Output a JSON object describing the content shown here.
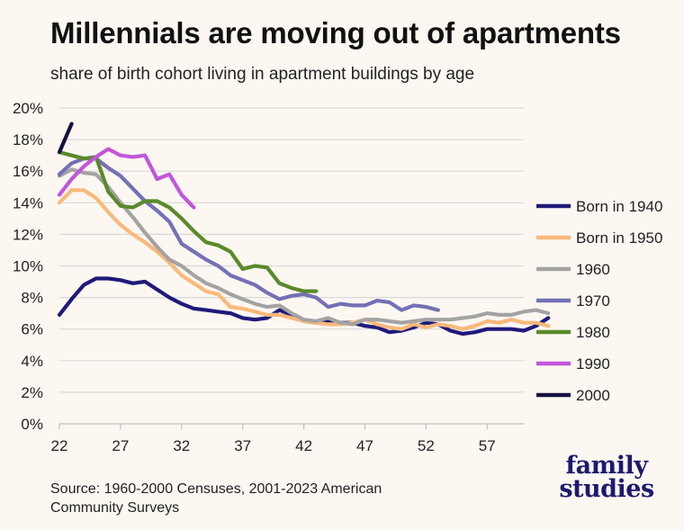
{
  "header": {
    "title": "Millennials are moving out of apartments",
    "subtitle": "share of birth cohort living in apartment buildings by age"
  },
  "footer": {
    "source_line1": "Source: 1960-2000 Censuses, 2001-2023 American",
    "source_line2": "Community Surveys",
    "logo_line1": "family",
    "logo_line2": "studies"
  },
  "colors": {
    "background": "#fdf7f2",
    "grid": "#d9d9d9",
    "axis": "#bfbfbf",
    "logo": "#1c1a6e"
  },
  "chart_data": {
    "type": "line",
    "title": "Millennials are moving out of apartments",
    "subtitle": "share of birth cohort living in apartment buildings by age",
    "xlabel": "",
    "ylabel": "",
    "xlim": [
      22,
      60
    ],
    "ylim": [
      0,
      20
    ],
    "x_ticks": [
      22,
      27,
      32,
      37,
      42,
      47,
      52,
      57
    ],
    "y_ticks": [
      0,
      2,
      4,
      6,
      8,
      10,
      12,
      14,
      16,
      18,
      20
    ],
    "y_tick_labels": [
      "0%",
      "2%",
      "4%",
      "6%",
      "8%",
      "10%",
      "12%",
      "14%",
      "16%",
      "18%",
      "20%"
    ],
    "grid": "horizontal",
    "legend_position": "right",
    "series": [
      {
        "name": "Born in 1940",
        "color": "#1f1a7a",
        "start_age": 22,
        "values": [
          6.9,
          7.9,
          8.8,
          9.2,
          9.2,
          9.1,
          8.9,
          9.0,
          8.5,
          8.0,
          7.6,
          7.3,
          7.2,
          7.1,
          7.0,
          6.7,
          6.6,
          6.7,
          7.2,
          6.9,
          6.5,
          6.4,
          6.5,
          6.4,
          6.4,
          6.2,
          6.1,
          5.8,
          5.9,
          6.1,
          6.4,
          6.3,
          5.9,
          5.7,
          5.8,
          6.0,
          6.0,
          6.0,
          5.9,
          6.2,
          6.7
        ]
      },
      {
        "name": "Born in 1950",
        "color": "#f9b97a",
        "start_age": 22,
        "values": [
          14.0,
          14.8,
          14.8,
          14.3,
          13.4,
          12.6,
          12.0,
          11.5,
          10.9,
          10.2,
          9.4,
          8.9,
          8.4,
          8.2,
          7.4,
          7.3,
          7.1,
          6.9,
          6.9,
          6.7,
          6.5,
          6.4,
          6.3,
          6.3,
          6.4,
          6.6,
          6.3,
          6.1,
          6.0,
          6.3,
          6.1,
          6.3,
          6.2,
          6.0,
          6.2,
          6.5,
          6.4,
          6.6,
          6.4,
          6.4,
          6.2
        ]
      },
      {
        "name": "1960",
        "color": "#a3a3a3",
        "start_age": 22,
        "values": [
          15.7,
          16.1,
          15.9,
          15.8,
          15.0,
          14.0,
          13.1,
          12.1,
          11.2,
          10.4,
          10.0,
          9.4,
          8.9,
          8.6,
          8.2,
          7.9,
          7.6,
          7.4,
          7.5,
          7.0,
          6.6,
          6.5,
          6.7,
          6.4,
          6.3,
          6.6,
          6.6,
          6.5,
          6.4,
          6.5,
          6.6,
          6.6,
          6.6,
          6.7,
          6.8,
          7.0,
          6.9,
          6.9,
          7.1,
          7.2,
          7.0
        ]
      },
      {
        "name": "1970",
        "color": "#7470b5",
        "start_age": 22,
        "values": [
          15.8,
          16.5,
          16.8,
          16.8,
          16.2,
          15.7,
          14.9,
          14.1,
          13.5,
          12.8,
          11.4,
          10.9,
          10.4,
          10.0,
          9.4,
          9.1,
          8.8,
          8.3,
          7.9,
          8.1,
          8.2,
          8.0,
          7.4,
          7.6,
          7.5,
          7.5,
          7.8,
          7.7,
          7.2,
          7.5,
          7.4,
          7.2
        ]
      },
      {
        "name": "1980",
        "color": "#5a8a2a",
        "start_age": 22,
        "values": [
          17.2,
          17.0,
          16.8,
          16.9,
          14.7,
          13.8,
          13.7,
          14.1,
          14.1,
          13.7,
          13.0,
          12.2,
          11.5,
          11.3,
          10.9,
          9.8,
          10.0,
          9.9,
          8.9,
          8.6,
          8.4,
          8.4
        ]
      },
      {
        "name": "1990",
        "color": "#c256d9",
        "start_age": 22,
        "values": [
          14.5,
          15.5,
          16.3,
          16.9,
          17.4,
          17.0,
          16.9,
          17.0,
          15.5,
          15.8,
          14.5,
          13.7
        ]
      },
      {
        "name": "2000",
        "color": "#14123d",
        "start_age": 22,
        "values": [
          17.2,
          19.0
        ]
      }
    ]
  }
}
